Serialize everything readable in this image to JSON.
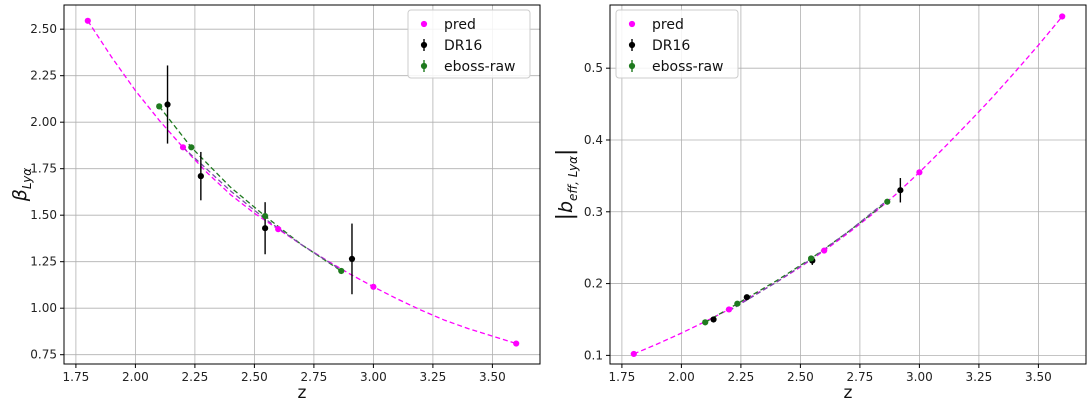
{
  "chart_data": [
    {
      "type": "scatter",
      "xlabel": "z",
      "ylabel": {
        "main": "β",
        "sub": "Lyα",
        "abs": false
      },
      "xlim": [
        1.7,
        3.7
      ],
      "ylim": [
        0.7,
        2.63
      ],
      "xticks": [
        1.75,
        2.0,
        2.25,
        2.5,
        2.75,
        3.0,
        3.25,
        3.5
      ],
      "xtick_labels": [
        "1.75",
        "2.00",
        "2.25",
        "2.50",
        "2.75",
        "3.00",
        "3.25",
        "3.50"
      ],
      "yticks": [
        0.75,
        1.0,
        1.25,
        1.5,
        1.75,
        2.0,
        2.25,
        2.5
      ],
      "ytick_labels": [
        "0.75",
        "1.00",
        "1.25",
        "1.50",
        "1.75",
        "2.00",
        "2.25",
        "2.50"
      ],
      "grid": true,
      "legend_position": "top-right",
      "series": [
        {
          "name": "pred",
          "color": "#ff00ff",
          "style": "points-dashed-fit",
          "x": [
            1.8,
            2.2,
            2.6,
            3.0,
            3.6
          ],
          "y": [
            2.545,
            1.865,
            1.425,
            1.115,
            0.81
          ]
        },
        {
          "name": "DR16",
          "color": "#000000",
          "style": "errorbar",
          "x": [
            2.135,
            2.275,
            2.545,
            2.91
          ],
          "y": [
            2.095,
            1.71,
            1.43,
            1.265
          ],
          "yerr": [
            0.21,
            0.13,
            0.14,
            0.19
          ]
        },
        {
          "name": "eboss-raw",
          "color": "#1f7a1f",
          "style": "errorbar-dashed-fit",
          "x": [
            2.1,
            2.235,
            2.545,
            2.865
          ],
          "y": [
            2.085,
            1.865,
            1.495,
            1.2
          ],
          "yerr": [
            0.005,
            0.005,
            0.005,
            0.005
          ]
        }
      ],
      "fit_curves": [
        {
          "color": "#ff00ff",
          "x": [
            1.8,
            1.9,
            2.0,
            2.1,
            2.2,
            2.3,
            2.4,
            2.5,
            2.6,
            2.7,
            2.8,
            2.9,
            3.0,
            3.1,
            3.2,
            3.3,
            3.4,
            3.5,
            3.6
          ],
          "y": [
            2.545,
            2.35,
            2.17,
            2.01,
            1.865,
            1.73,
            1.61,
            1.51,
            1.425,
            1.34,
            1.26,
            1.185,
            1.115,
            1.05,
            0.99,
            0.935,
            0.89,
            0.85,
            0.81
          ]
        },
        {
          "color": "#1f7a1f",
          "x": [
            2.1,
            2.235,
            2.4,
            2.545,
            2.7,
            2.865
          ],
          "y": [
            2.085,
            1.865,
            1.65,
            1.495,
            1.34,
            1.2
          ]
        },
        {
          "color": "#7b4fa8",
          "x": [
            2.2,
            2.4,
            2.545,
            2.7,
            2.865
          ],
          "y": [
            1.865,
            1.63,
            1.48,
            1.34,
            1.205
          ]
        }
      ]
    },
    {
      "type": "scatter",
      "xlabel": "z",
      "ylabel": {
        "main": "b",
        "sub": "eff, Lyα",
        "abs": true
      },
      "xlim": [
        1.7,
        3.7
      ],
      "ylim": [
        0.088,
        0.588
      ],
      "xticks": [
        1.75,
        2.0,
        2.25,
        2.5,
        2.75,
        3.0,
        3.25,
        3.5
      ],
      "xtick_labels": [
        "1.75",
        "2.00",
        "2.25",
        "2.50",
        "2.75",
        "3.00",
        "3.25",
        "3.50"
      ],
      "yticks": [
        0.1,
        0.2,
        0.3,
        0.4,
        0.5
      ],
      "ytick_labels": [
        "0.1",
        "0.2",
        "0.3",
        "0.4",
        "0.5"
      ],
      "grid": true,
      "legend_position": "top-left",
      "series": [
        {
          "name": "pred",
          "color": "#ff00ff",
          "style": "points-dashed-fit",
          "x": [
            1.8,
            2.2,
            2.6,
            3.0,
            3.6
          ],
          "y": [
            0.102,
            0.164,
            0.246,
            0.355,
            0.572
          ]
        },
        {
          "name": "DR16",
          "color": "#000000",
          "style": "errorbar",
          "x": [
            2.135,
            2.275,
            2.55,
            2.92
          ],
          "y": [
            0.15,
            0.181,
            0.232,
            0.33
          ],
          "yerr": [
            0.003,
            0.003,
            0.006,
            0.017
          ]
        },
        {
          "name": "eboss-raw",
          "color": "#1f7a1f",
          "style": "errorbar-dashed-fit",
          "x": [
            2.1,
            2.235,
            2.545,
            2.865
          ],
          "y": [
            0.146,
            0.172,
            0.235,
            0.314
          ],
          "yerr": [
            0.002,
            0.002,
            0.002,
            0.002
          ]
        }
      ],
      "fit_curves": [
        {
          "color": "#ff00ff",
          "x": [
            1.8,
            1.9,
            2.0,
            2.1,
            2.2,
            2.3,
            2.4,
            2.5,
            2.6,
            2.7,
            2.8,
            2.9,
            3.0,
            3.1,
            3.2,
            3.3,
            3.4,
            3.5,
            3.6
          ],
          "y": [
            0.102,
            0.116,
            0.131,
            0.147,
            0.164,
            0.183,
            0.202,
            0.223,
            0.246,
            0.27,
            0.296,
            0.324,
            0.355,
            0.388,
            0.422,
            0.457,
            0.494,
            0.532,
            0.572
          ]
        },
        {
          "color": "#1f7a1f",
          "x": [
            2.1,
            2.235,
            2.4,
            2.545,
            2.7,
            2.865
          ],
          "y": [
            0.146,
            0.172,
            0.204,
            0.235,
            0.272,
            0.314
          ]
        },
        {
          "color": "#7b4fa8",
          "x": [
            2.2,
            2.4,
            2.545,
            2.7,
            2.865
          ],
          "y": [
            0.162,
            0.202,
            0.234,
            0.272,
            0.316
          ]
        }
      ]
    }
  ]
}
